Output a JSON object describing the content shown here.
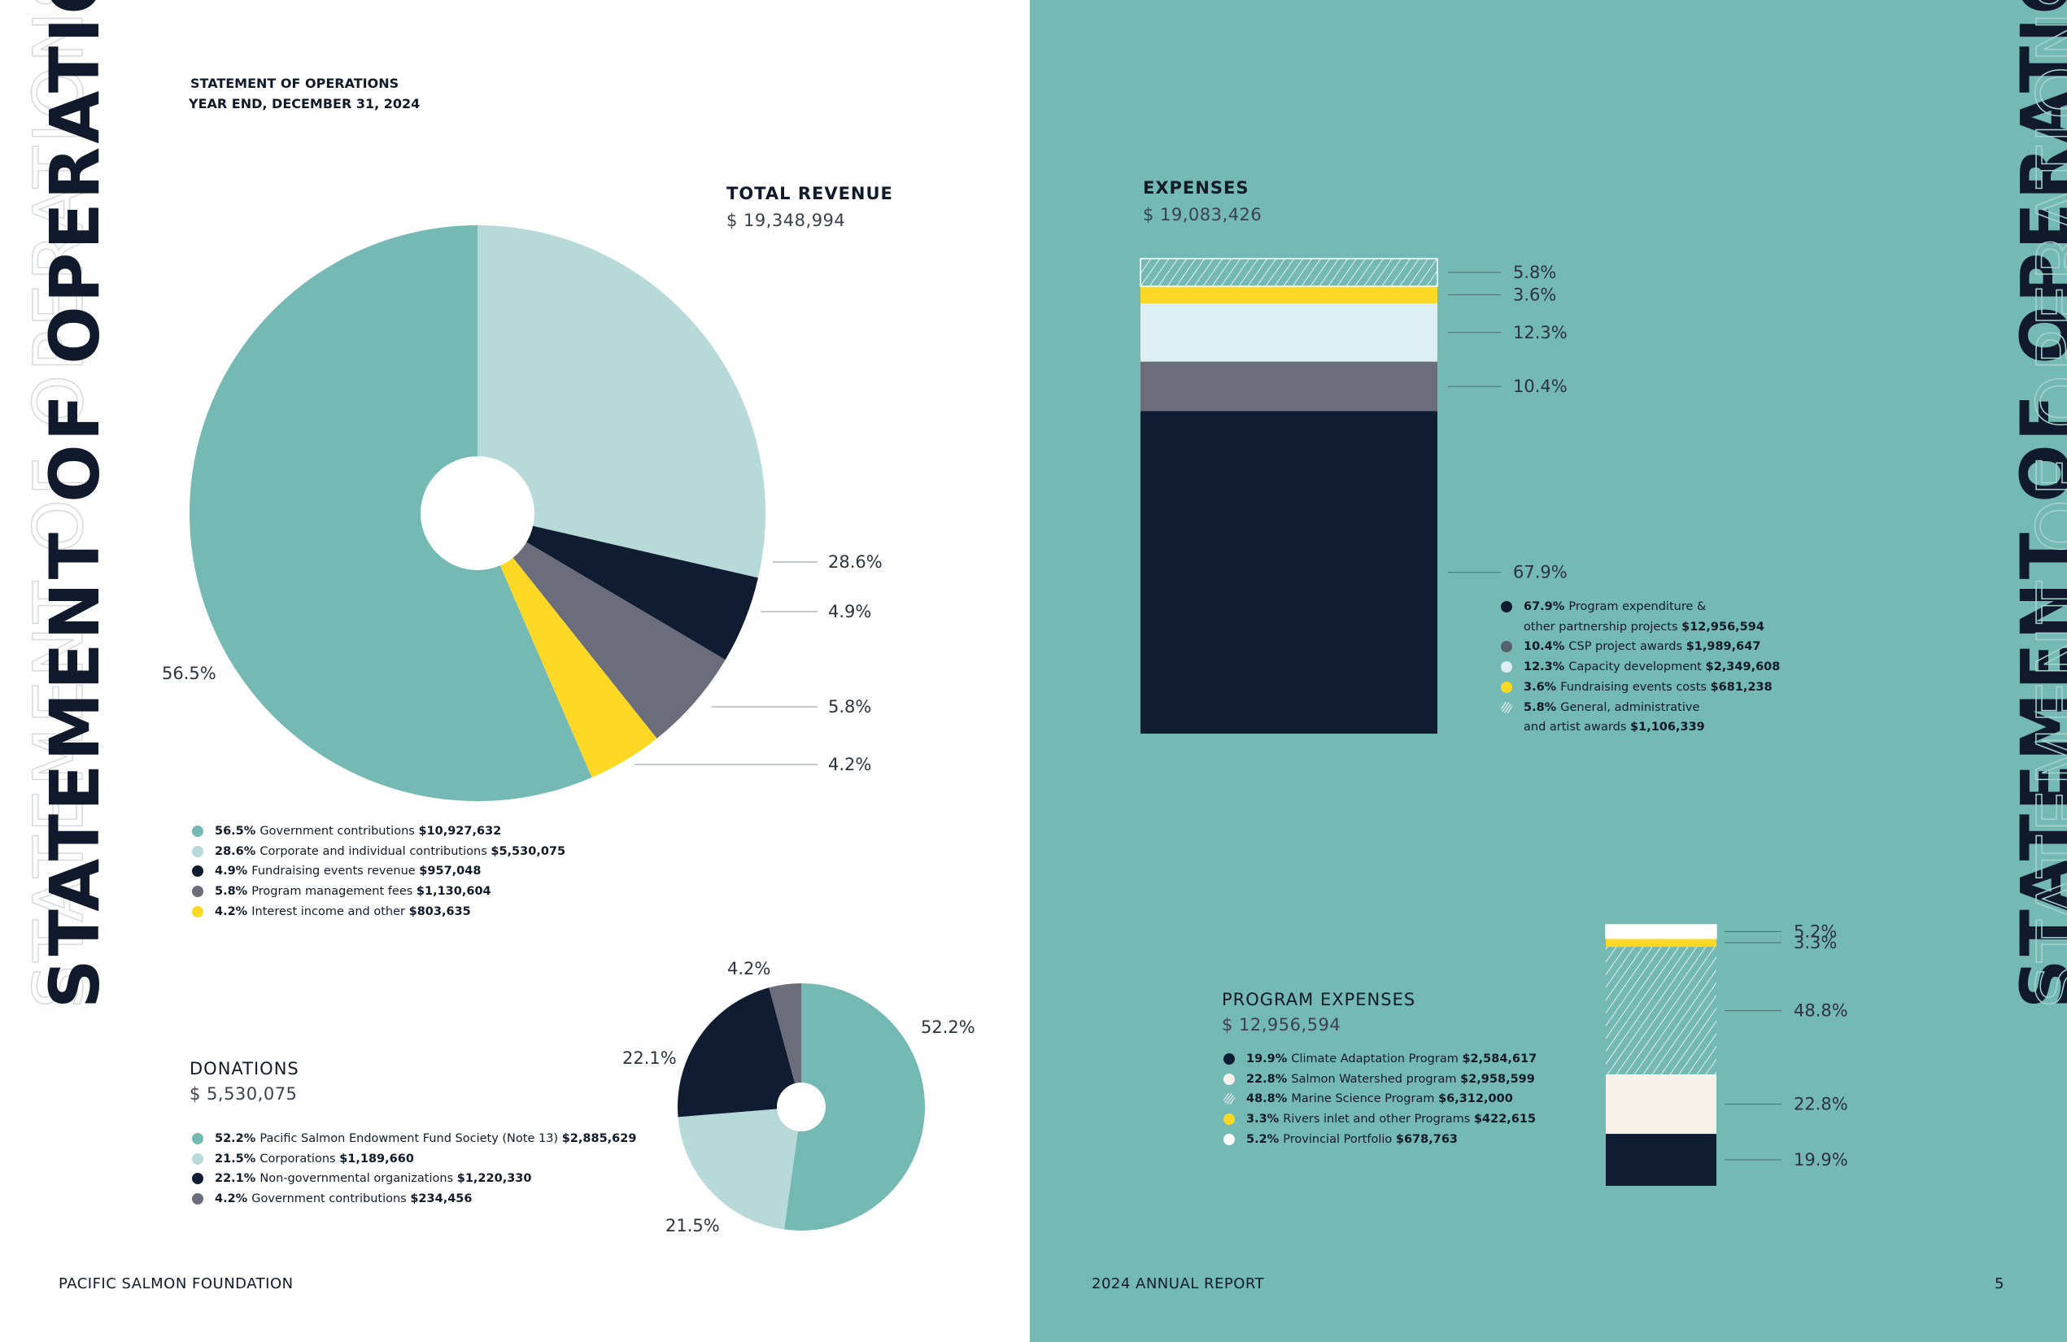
{
  "page_header": {
    "line1": "STATEMENT OF OPERATIONS",
    "line2": "YEAR END, DECEMBER 31, 2024"
  },
  "side_title": "STATEMENT OF OPERATIONS",
  "footer": {
    "left": "PACIFIC SALMON FOUNDATION",
    "center": "2024 ANNUAL REPORT",
    "page": "5"
  },
  "colors": {
    "teal": "#74b9b3",
    "light_teal": "#b7d9d8",
    "navy": "#101c32",
    "gray": "#6b6d7a",
    "yellow": "#fdd926",
    "pale_blue": "#ddeff2",
    "cream": "#f7f1ea",
    "dark_gray": "#56606a"
  },
  "chart_data": [
    {
      "id": "revenue",
      "type": "pie",
      "title": "TOTAL REVENUE",
      "total": "$ 19,348,994",
      "slices": [
        {
          "pct_label": "56.5%",
          "value": 56.5,
          "label": "Government contributions",
          "amount": "$10,927,632",
          "color": "#74b9b3"
        },
        {
          "pct_label": "28.6%",
          "value": 28.6,
          "label": "Corporate and individual contributions",
          "amount": "$5,530,075",
          "color": "#b7d9d8"
        },
        {
          "pct_label": "4.9%",
          "value": 4.9,
          "label": "Fundraising events revenue",
          "amount": "$957,048",
          "color": "#101c32"
        },
        {
          "pct_label": "5.8%",
          "value": 5.8,
          "label": "Program management fees",
          "amount": "$1,130,604",
          "color": "#6b6d7a"
        },
        {
          "pct_label": "4.2%",
          "value": 4.2,
          "label": "Interest income and other",
          "amount": "$803,635",
          "color": "#fdd926"
        }
      ]
    },
    {
      "id": "donations",
      "type": "pie",
      "title": "DONATIONS",
      "total": "$ 5,530,075",
      "slices": [
        {
          "pct_label": "52.2%",
          "value": 52.2,
          "label": "Pacific Salmon Endowment Fund Society (Note 13)",
          "amount": "$2,885,629",
          "color": "#74b9b3"
        },
        {
          "pct_label": "21.5%",
          "value": 21.5,
          "label": "Corporations",
          "amount": "$1,189,660",
          "color": "#b7d9d8"
        },
        {
          "pct_label": "22.1%",
          "value": 22.1,
          "label": "Non-governmental organizations",
          "amount": "$1,220,330",
          "color": "#101c32"
        },
        {
          "pct_label": "4.2%",
          "value": 4.2,
          "label": "Government contributions",
          "amount": "$234,456",
          "color": "#6b6d7a"
        }
      ]
    },
    {
      "id": "expenses",
      "type": "bar",
      "stacked": true,
      "title": "EXPENSES",
      "total": "$ 19,083,426",
      "segments": [
        {
          "pct_label": "5.8%",
          "value": 5.8,
          "label": "General, administrative and artist awards",
          "amount": "$1,106,339",
          "color": "#74b9b3",
          "hatched": true
        },
        {
          "pct_label": "3.6%",
          "value": 3.6,
          "label": "Fundraising events costs",
          "amount": "$681,238",
          "color": "#fdd926"
        },
        {
          "pct_label": "12.3%",
          "value": 12.3,
          "label": "Capacity development",
          "amount": "$2,349,608",
          "color": "#ddeff2"
        },
        {
          "pct_label": "10.4%",
          "value": 10.4,
          "label": "CSP project awards",
          "amount": "$1,989,647",
          "color": "#6b6d7a"
        },
        {
          "pct_label": "67.9%",
          "value": 67.9,
          "label": "Program expenditure & other partnership projects",
          "amount": "$12,956,594",
          "color": "#101c32"
        }
      ],
      "legend_items": [
        {
          "pct": "67.9%",
          "line1": "Program expenditure &",
          "line2": "other partnership projects",
          "amount": "$12,956,594",
          "color": "#101c32"
        },
        {
          "pct": "10.4%",
          "line1": "CSP project awards",
          "line2": "",
          "amount": "$1,989,647",
          "color": "#56606a"
        },
        {
          "pct": "12.3%",
          "line1": "Capacity development",
          "line2": "",
          "amount": "$2,349,608",
          "color": "#ddeff2"
        },
        {
          "pct": "3.6%",
          "line1": "Fundraising events costs",
          "line2": "",
          "amount": "$681,238",
          "color": "#fdd926"
        },
        {
          "pct": "5.8%",
          "line1": "General, administrative",
          "line2": "and artist awards",
          "amount": "$1,106,339",
          "color": "#74b9b3",
          "hatched": true
        }
      ]
    },
    {
      "id": "program_expenses",
      "type": "bar",
      "stacked": true,
      "title": "PROGRAM EXPENSES",
      "total": "$ 12,956,594",
      "segments": [
        {
          "pct_label": "5.2%",
          "value": 5.2,
          "label": "Provincial Portfolio",
          "amount": "$678,763",
          "color": "#ffffff"
        },
        {
          "pct_label": "3.3%",
          "value": 3.3,
          "label": "Rivers inlet and other Programs",
          "amount": "$422,615",
          "color": "#fdd926"
        },
        {
          "pct_label": "48.8%",
          "value": 48.8,
          "label": "Marine Science Program",
          "amount": "$6,312,000",
          "color": "#74b9b3",
          "hatched": true
        },
        {
          "pct_label": "22.8%",
          "value": 22.8,
          "label": "Salmon Watershed program",
          "amount": "$2,958,599",
          "color": "#f7f1ea"
        },
        {
          "pct_label": "19.9%",
          "value": 19.9,
          "label": "Climate Adaptation Program",
          "amount": "$2,584,617",
          "color": "#101c32"
        }
      ],
      "legend_items": [
        {
          "pct": "19.9%",
          "line1": "Climate Adaptation Program",
          "amount": "$2,584,617",
          "color": "#101c32"
        },
        {
          "pct": "22.8%",
          "line1": "Salmon Watershed program",
          "amount": "$2,958,599",
          "color": "#f7f1ea"
        },
        {
          "pct": "48.8%",
          "line1": "Marine Science Program",
          "amount": "$6,312,000",
          "color": "#74b9b3",
          "hatched": true
        },
        {
          "pct": "3.3%",
          "line1": "Rivers inlet and other Programs",
          "amount": "$422,615",
          "color": "#fdd926"
        },
        {
          "pct": "5.2%",
          "line1": "Provincial Portfolio",
          "amount": "$678,763",
          "color": "#ffffff"
        }
      ]
    }
  ]
}
